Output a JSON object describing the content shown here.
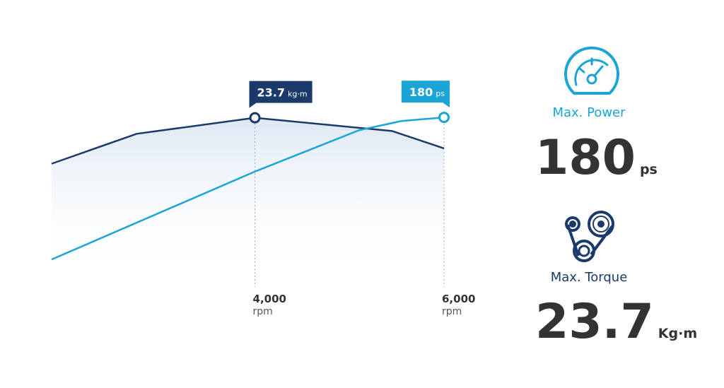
{
  "chart_data": {
    "type": "line",
    "xlim": [
      1850,
      6000
    ],
    "xticks": [
      {
        "value": 4000,
        "label": "4,000"
      },
      {
        "value": 6000,
        "label": "6,000"
      }
    ],
    "x_unit": "rpm",
    "ylim": [
      0,
      26
    ],
    "y2lim": [
      0,
      197
    ],
    "series": [
      {
        "name": "Torque",
        "color": "#1b3a6b",
        "axis": "y",
        "x": [
          1850,
          2750,
          4000,
          5450,
          6000
        ],
        "values": [
          17.1,
          21.4,
          23.7,
          21.8,
          19.3
        ]
      },
      {
        "name": "Power",
        "color": "#1aa5d6",
        "axis": "y2",
        "x": [
          1850,
          4000,
          5100,
          5550,
          6000
        ],
        "values": [
          25.3,
          121,
          166,
          176,
          180
        ]
      }
    ],
    "annotations": [
      {
        "series": 0,
        "point": 2,
        "value": 23.7,
        "unit": "kg·m"
      },
      {
        "series": 1,
        "point": 4,
        "value": 180,
        "unit": "ps"
      }
    ]
  },
  "stats": [
    {
      "label": "Max. Power",
      "value": 180,
      "unit": "ps",
      "color": "#1aa5d6"
    },
    {
      "label": "Max. Torque",
      "value": 23.7,
      "unit": "Kg·m",
      "color": "#1b3a6b"
    }
  ]
}
